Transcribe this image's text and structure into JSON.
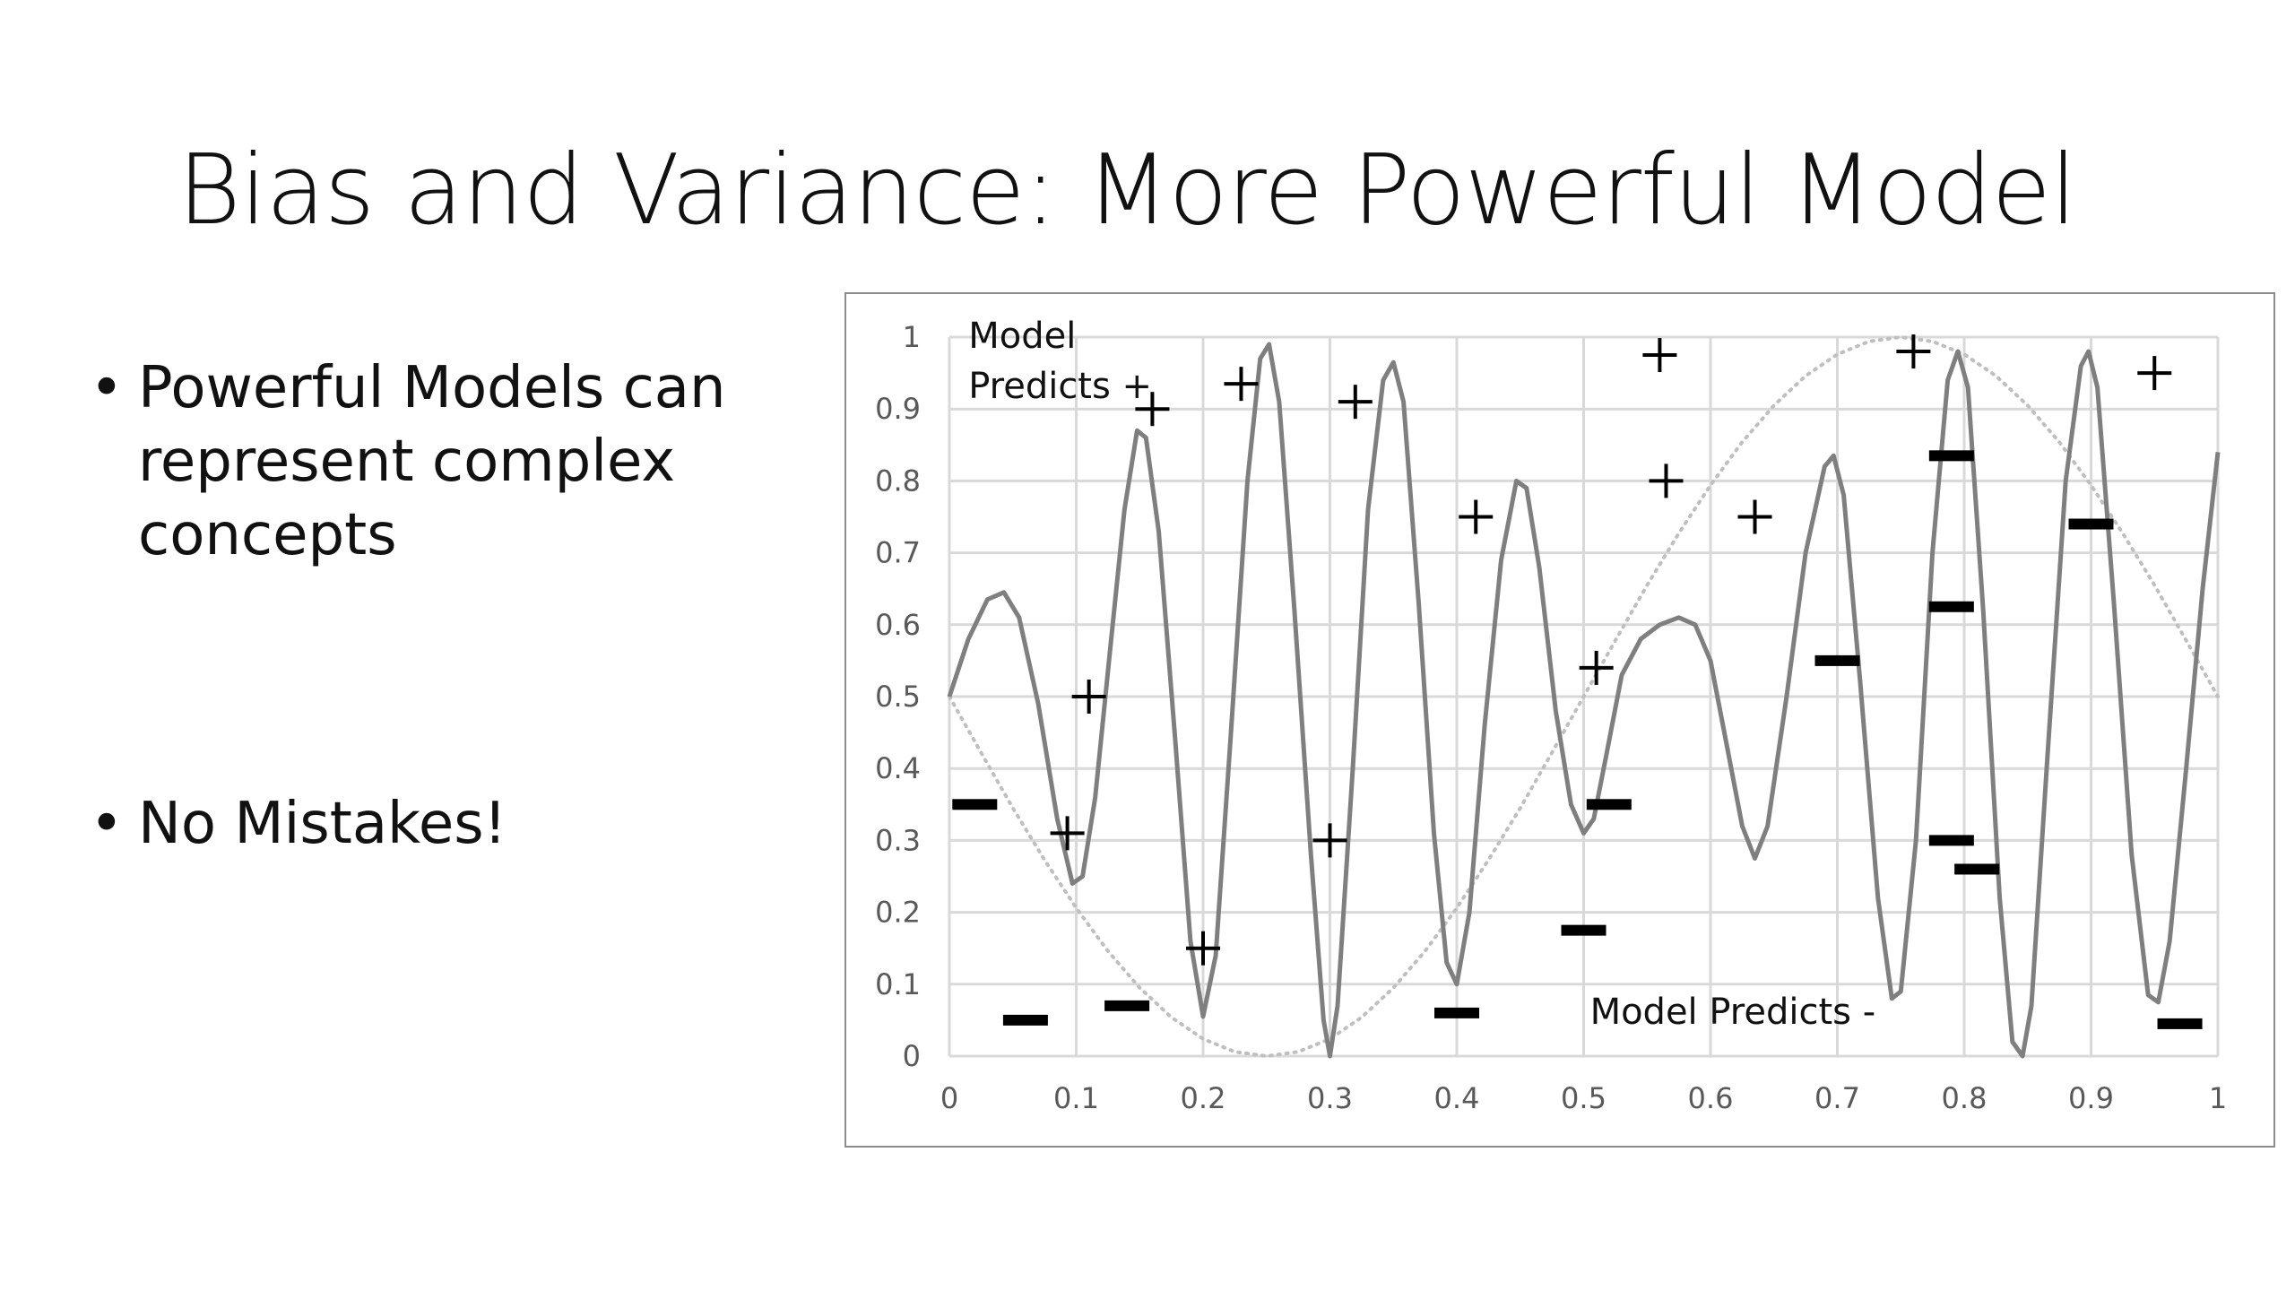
{
  "slide": {
    "title": "Bias and Variance: More Powerful Model",
    "bullets": [
      "Powerful Models can represent complex concepts",
      "No Mistakes!"
    ]
  },
  "chart_data": {
    "type": "scatter",
    "xlim": [
      0,
      1
    ],
    "ylim": [
      0,
      1
    ],
    "x_ticks": [
      "0",
      "0.1",
      "0.2",
      "0.3",
      "0.4",
      "0.5",
      "0.6",
      "0.7",
      "0.8",
      "0.9",
      "1"
    ],
    "y_ticks": [
      "0",
      "0.1",
      "0.2",
      "0.3",
      "0.4",
      "0.5",
      "0.6",
      "0.7",
      "0.8",
      "0.9",
      "1"
    ],
    "grid": true,
    "annotations": [
      {
        "text": "Model",
        "x": 0.015,
        "y": 1.0
      },
      {
        "text": "Predicts +",
        "x": 0.015,
        "y": 0.93
      },
      {
        "text": "Model Predicts -",
        "x": 0.505,
        "y": 0.06
      }
    ],
    "positive_points": [
      [
        0.11,
        0.5
      ],
      [
        0.093,
        0.31
      ],
      [
        0.16,
        0.9
      ],
      [
        0.23,
        0.935
      ],
      [
        0.32,
        0.91
      ],
      [
        0.2,
        0.15
      ],
      [
        0.3,
        0.3
      ],
      [
        0.415,
        0.75
      ],
      [
        0.51,
        0.54
      ],
      [
        0.56,
        0.975
      ],
      [
        0.565,
        0.8
      ],
      [
        0.635,
        0.75
      ],
      [
        0.76,
        0.98
      ],
      [
        0.95,
        0.95
      ]
    ],
    "negative_points": [
      [
        0.02,
        0.35
      ],
      [
        0.06,
        0.05
      ],
      [
        0.14,
        0.07
      ],
      [
        0.4,
        0.06
      ],
      [
        0.5,
        0.175
      ],
      [
        0.52,
        0.35
      ],
      [
        0.7,
        0.55
      ],
      [
        0.79,
        0.835
      ],
      [
        0.79,
        0.625
      ],
      [
        0.79,
        0.3
      ],
      [
        0.81,
        0.26
      ],
      [
        0.9,
        0.74
      ],
      [
        0.97,
        0.045
      ]
    ],
    "complex_model_curve": [
      [
        0.0,
        0.5
      ],
      [
        0.015,
        0.58
      ],
      [
        0.03,
        0.635
      ],
      [
        0.043,
        0.645
      ],
      [
        0.055,
        0.61
      ],
      [
        0.07,
        0.49
      ],
      [
        0.085,
        0.33
      ],
      [
        0.097,
        0.24
      ],
      [
        0.105,
        0.25
      ],
      [
        0.115,
        0.36
      ],
      [
        0.127,
        0.57
      ],
      [
        0.138,
        0.76
      ],
      [
        0.148,
        0.87
      ],
      [
        0.155,
        0.86
      ],
      [
        0.165,
        0.73
      ],
      [
        0.178,
        0.44
      ],
      [
        0.19,
        0.16
      ],
      [
        0.2,
        0.055
      ],
      [
        0.21,
        0.14
      ],
      [
        0.222,
        0.45
      ],
      [
        0.235,
        0.8
      ],
      [
        0.245,
        0.97
      ],
      [
        0.252,
        0.99
      ],
      [
        0.26,
        0.91
      ],
      [
        0.272,
        0.62
      ],
      [
        0.285,
        0.28
      ],
      [
        0.295,
        0.05
      ],
      [
        0.3,
        0.0
      ],
      [
        0.306,
        0.07
      ],
      [
        0.318,
        0.4
      ],
      [
        0.33,
        0.76
      ],
      [
        0.342,
        0.94
      ],
      [
        0.35,
        0.965
      ],
      [
        0.358,
        0.91
      ],
      [
        0.37,
        0.63
      ],
      [
        0.382,
        0.31
      ],
      [
        0.392,
        0.13
      ],
      [
        0.4,
        0.1
      ],
      [
        0.41,
        0.2
      ],
      [
        0.422,
        0.46
      ],
      [
        0.435,
        0.69
      ],
      [
        0.447,
        0.8
      ],
      [
        0.455,
        0.79
      ],
      [
        0.465,
        0.68
      ],
      [
        0.478,
        0.48
      ],
      [
        0.49,
        0.35
      ],
      [
        0.5,
        0.31
      ],
      [
        0.508,
        0.33
      ],
      [
        0.518,
        0.42
      ],
      [
        0.53,
        0.53
      ],
      [
        0.545,
        0.58
      ],
      [
        0.56,
        0.6
      ],
      [
        0.575,
        0.61
      ],
      [
        0.588,
        0.6
      ],
      [
        0.6,
        0.55
      ],
      [
        0.612,
        0.44
      ],
      [
        0.625,
        0.32
      ],
      [
        0.635,
        0.275
      ],
      [
        0.645,
        0.32
      ],
      [
        0.66,
        0.5
      ],
      [
        0.675,
        0.7
      ],
      [
        0.69,
        0.82
      ],
      [
        0.697,
        0.835
      ],
      [
        0.705,
        0.78
      ],
      [
        0.718,
        0.52
      ],
      [
        0.732,
        0.22
      ],
      [
        0.743,
        0.08
      ],
      [
        0.75,
        0.09
      ],
      [
        0.762,
        0.3
      ],
      [
        0.775,
        0.7
      ],
      [
        0.787,
        0.94
      ],
      [
        0.795,
        0.98
      ],
      [
        0.803,
        0.93
      ],
      [
        0.815,
        0.62
      ],
      [
        0.828,
        0.22
      ],
      [
        0.838,
        0.02
      ],
      [
        0.846,
        0.0
      ],
      [
        0.853,
        0.07
      ],
      [
        0.865,
        0.4
      ],
      [
        0.88,
        0.8
      ],
      [
        0.892,
        0.96
      ],
      [
        0.898,
        0.98
      ],
      [
        0.905,
        0.93
      ],
      [
        0.918,
        0.63
      ],
      [
        0.932,
        0.28
      ],
      [
        0.945,
        0.085
      ],
      [
        0.953,
        0.075
      ],
      [
        0.962,
        0.16
      ],
      [
        0.975,
        0.4
      ],
      [
        0.988,
        0.65
      ],
      [
        1.0,
        0.84
      ]
    ],
    "reference_curve_style": "dotted",
    "reference_curve": [
      [
        0.0,
        0.5
      ],
      [
        0.025,
        0.422
      ],
      [
        0.05,
        0.345
      ],
      [
        0.075,
        0.273
      ],
      [
        0.1,
        0.206
      ],
      [
        0.125,
        0.146
      ],
      [
        0.15,
        0.095
      ],
      [
        0.175,
        0.054
      ],
      [
        0.2,
        0.024
      ],
      [
        0.225,
        0.006
      ],
      [
        0.25,
        0.0
      ],
      [
        0.275,
        0.006
      ],
      [
        0.3,
        0.024
      ],
      [
        0.325,
        0.054
      ],
      [
        0.35,
        0.095
      ],
      [
        0.375,
        0.146
      ],
      [
        0.4,
        0.206
      ],
      [
        0.425,
        0.273
      ],
      [
        0.45,
        0.345
      ],
      [
        0.475,
        0.422
      ],
      [
        0.5,
        0.5
      ],
      [
        0.525,
        0.578
      ],
      [
        0.55,
        0.655
      ],
      [
        0.575,
        0.727
      ],
      [
        0.6,
        0.794
      ],
      [
        0.625,
        0.854
      ],
      [
        0.65,
        0.905
      ],
      [
        0.675,
        0.946
      ],
      [
        0.7,
        0.976
      ],
      [
        0.725,
        0.994
      ],
      [
        0.75,
        1.0
      ],
      [
        0.775,
        0.994
      ],
      [
        0.8,
        0.976
      ],
      [
        0.825,
        0.946
      ],
      [
        0.85,
        0.905
      ],
      [
        0.875,
        0.854
      ],
      [
        0.9,
        0.794
      ],
      [
        0.925,
        0.727
      ],
      [
        0.95,
        0.655
      ],
      [
        0.975,
        0.578
      ],
      [
        1.0,
        0.5
      ]
    ],
    "colors": {
      "grid": "#d9d9d9",
      "tick_label": "#595959",
      "model_line": "#7f7f7f",
      "reference_line": "#bfbfbf",
      "markers": "#000000",
      "annotation": "#111111"
    }
  }
}
